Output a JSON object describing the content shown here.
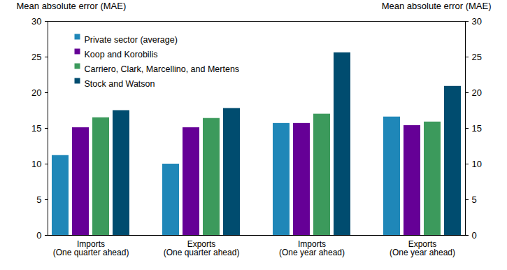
{
  "chart_data": {
    "type": "bar",
    "y_label": "Mean absolute error (MAE)",
    "categories": [
      "Imports\n(One quarter ahead)",
      "Exports\n(One quarter ahead)",
      "Imports\n(One year ahead)",
      "Exports\n(One year ahead)"
    ],
    "series": [
      {
        "name": "Private sector (average)",
        "color": "#1f87b8",
        "values": [
          11.2,
          10.0,
          15.7,
          16.6
        ]
      },
      {
        "name": "Koop and Korobilis",
        "color": "#650096",
        "values": [
          15.1,
          15.1,
          15.7,
          15.4
        ]
      },
      {
        "name": "Carriero, Clark, Marcellino, and Mertens",
        "color": "#3c9a5c",
        "values": [
          16.5,
          16.4,
          17.0,
          15.9
        ]
      },
      {
        "name": "Stock and Watson",
        "color": "#004c6f",
        "values": [
          17.5,
          17.8,
          25.6,
          20.9
        ]
      }
    ],
    "ylim": [
      0,
      30
    ],
    "yticks": [
      0,
      5,
      10,
      15,
      20,
      25,
      30
    ],
    "grid": false,
    "legend": "upper left"
  }
}
